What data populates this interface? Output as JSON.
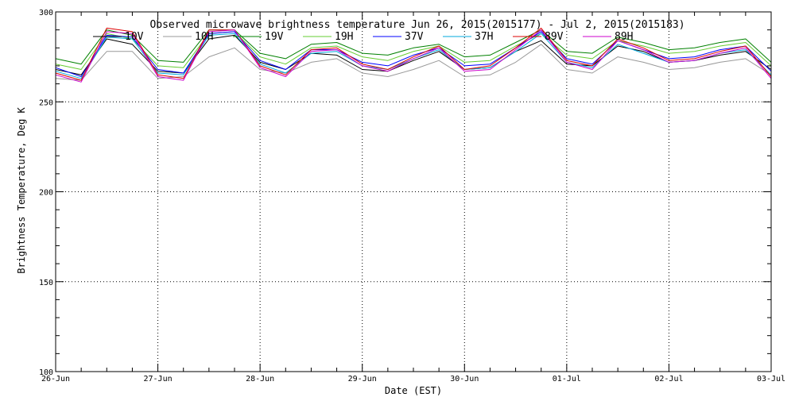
{
  "chart_data": {
    "type": "line",
    "title": "Observed microwave brightness temperature Jun 26, 2015(2015177) - Jul  2, 2015(2015183)",
    "xlabel": "Date (EST)",
    "ylabel": "Brightness Temperature, Deg K",
    "ylim": [
      100,
      300
    ],
    "xlim": [
      "26-Jun",
      "03-Jul"
    ],
    "x_tick_labels": [
      "26-Jun",
      "27-Jun",
      "28-Jun",
      "29-Jun",
      "30-Jun",
      "01-Jul",
      "02-Jul",
      "03-Jul"
    ],
    "y_ticks": [
      100,
      150,
      200,
      250,
      300
    ],
    "grid": true,
    "legend_position": "top",
    "series": [
      {
        "name": "10V",
        "color": "#000000",
        "x": [
          "26-Jun 00:00",
          "26-Jun 06:00",
          "26-Jun 12:00",
          "26-Jun 18:00",
          "27-Jun 00:00",
          "27-Jun 06:00",
          "27-Jun 12:00",
          "27-Jun 18:00",
          "28-Jun 00:00",
          "28-Jun 06:00",
          "28-Jun 12:00",
          "28-Jun 18:00",
          "29-Jun 00:00",
          "29-Jun 06:00",
          "29-Jun 12:00",
          "29-Jun 18:00",
          "30-Jun 00:00",
          "30-Jun 06:00",
          "30-Jun 12:00",
          "30-Jun 18:00",
          "01-Jul 00:00",
          "01-Jul 06:00",
          "01-Jul 12:00",
          "01-Jul 18:00",
          "02-Jul 00:00",
          "02-Jul 06:00",
          "02-Jul 12:00",
          "02-Jul 18:00",
          "03-Jul 00:00"
        ],
        "values": [
          268,
          265,
          285,
          282,
          267,
          266,
          285,
          287,
          272,
          268,
          277,
          276,
          268,
          267,
          273,
          278,
          268,
          269,
          278,
          284,
          271,
          270,
          281,
          278,
          272,
          273,
          276,
          278,
          268
        ]
      },
      {
        "name": "10H",
        "color": "#999999",
        "x": [
          "26-Jun 00:00",
          "26-Jun 06:00",
          "26-Jun 12:00",
          "26-Jun 18:00",
          "27-Jun 00:00",
          "27-Jun 06:00",
          "27-Jun 12:00",
          "27-Jun 18:00",
          "28-Jun 00:00",
          "28-Jun 06:00",
          "28-Jun 12:00",
          "28-Jun 18:00",
          "29-Jun 00:00",
          "29-Jun 06:00",
          "29-Jun 12:00",
          "29-Jun 18:00",
          "30-Jun 00:00",
          "30-Jun 06:00",
          "30-Jun 12:00",
          "30-Jun 18:00",
          "01-Jul 00:00",
          "01-Jul 06:00",
          "01-Jul 12:00",
          "01-Jul 18:00",
          "02-Jul 00:00",
          "02-Jul 06:00",
          "02-Jul 12:00",
          "02-Jul 18:00",
          "03-Jul 00:00"
        ],
        "values": [
          263,
          262,
          278,
          278,
          263,
          264,
          275,
          280,
          268,
          266,
          272,
          274,
          266,
          264,
          268,
          273,
          264,
          265,
          272,
          282,
          268,
          266,
          275,
          272,
          268,
          269,
          272,
          274,
          265
        ]
      },
      {
        "name": "19V",
        "color": "#008000",
        "x": [
          "26-Jun 00:00",
          "26-Jun 06:00",
          "26-Jun 12:00",
          "26-Jun 18:00",
          "27-Jun 00:00",
          "27-Jun 06:00",
          "27-Jun 12:00",
          "27-Jun 18:00",
          "28-Jun 00:00",
          "28-Jun 06:00",
          "28-Jun 12:00",
          "28-Jun 18:00",
          "29-Jun 00:00",
          "29-Jun 06:00",
          "29-Jun 12:00",
          "29-Jun 18:00",
          "30-Jun 00:00",
          "30-Jun 06:00",
          "30-Jun 12:00",
          "30-Jun 18:00",
          "01-Jul 00:00",
          "01-Jul 06:00",
          "01-Jul 12:00",
          "01-Jul 18:00",
          "02-Jul 00:00",
          "02-Jul 06:00",
          "02-Jul 12:00",
          "02-Jul 18:00",
          "03-Jul 00:00"
        ],
        "values": [
          274,
          271,
          290,
          287,
          273,
          272,
          290,
          290,
          277,
          274,
          282,
          283,
          277,
          276,
          280,
          282,
          275,
          276,
          283,
          290,
          278,
          277,
          286,
          283,
          279,
          280,
          283,
          285,
          272
        ]
      },
      {
        "name": "19H",
        "color": "#66cc33",
        "x": [
          "26-Jun 00:00",
          "26-Jun 06:00",
          "26-Jun 12:00",
          "26-Jun 18:00",
          "27-Jun 00:00",
          "27-Jun 06:00",
          "27-Jun 12:00",
          "27-Jun 18:00",
          "28-Jun 00:00",
          "28-Jun 06:00",
          "28-Jun 12:00",
          "28-Jun 18:00",
          "29-Jun 00:00",
          "29-Jun 06:00",
          "29-Jun 12:00",
          "29-Jun 18:00",
          "30-Jun 00:00",
          "30-Jun 06:00",
          "30-Jun 12:00",
          "30-Jun 18:00",
          "01-Jul 00:00",
          "01-Jul 06:00",
          "01-Jul 12:00",
          "01-Jul 18:00",
          "02-Jul 00:00",
          "02-Jul 06:00",
          "02-Jul 12:00",
          "02-Jul 18:00",
          "03-Jul 00:00"
        ],
        "values": [
          271,
          268,
          288,
          285,
          270,
          269,
          288,
          289,
          275,
          271,
          280,
          281,
          275,
          273,
          278,
          281,
          272,
          273,
          281,
          288,
          276,
          274,
          284,
          281,
          277,
          278,
          281,
          283,
          270
        ]
      },
      {
        "name": "37V",
        "color": "#0000ff",
        "x": [
          "26-Jun 00:00",
          "26-Jun 06:00",
          "26-Jun 12:00",
          "26-Jun 18:00",
          "27-Jun 00:00",
          "27-Jun 06:00",
          "27-Jun 12:00",
          "27-Jun 18:00",
          "28-Jun 00:00",
          "28-Jun 06:00",
          "28-Jun 12:00",
          "28-Jun 18:00",
          "29-Jun 00:00",
          "29-Jun 06:00",
          "29-Jun 12:00",
          "29-Jun 18:00",
          "30-Jun 00:00",
          "30-Jun 06:00",
          "30-Jun 12:00",
          "30-Jun 18:00",
          "01-Jul 00:00",
          "01-Jul 06:00",
          "01-Jul 12:00",
          "01-Jul 18:00",
          "02-Jul 00:00",
          "02-Jul 06:00",
          "02-Jul 12:00",
          "02-Jul 18:00",
          "03-Jul 00:00"
        ],
        "values": [
          269,
          264,
          287,
          286,
          268,
          266,
          288,
          289,
          273,
          268,
          279,
          279,
          272,
          270,
          276,
          280,
          270,
          271,
          280,
          289,
          274,
          271,
          284,
          279,
          274,
          275,
          279,
          281,
          267
        ]
      },
      {
        "name": "37H",
        "color": "#00aadd",
        "x": [
          "26-Jun 00:00",
          "26-Jun 06:00",
          "26-Jun 12:00",
          "26-Jun 18:00",
          "27-Jun 00:00",
          "27-Jun 06:00",
          "27-Jun 12:00",
          "27-Jun 18:00",
          "28-Jun 00:00",
          "28-Jun 06:00",
          "28-Jun 12:00",
          "28-Jun 18:00",
          "29-Jun 00:00",
          "29-Jun 06:00",
          "29-Jun 12:00",
          "29-Jun 18:00",
          "30-Jun 00:00",
          "30-Jun 06:00",
          "30-Jun 12:00",
          "30-Jun 18:00",
          "01-Jul 00:00",
          "01-Jul 06:00",
          "01-Jul 12:00",
          "01-Jul 18:00",
          "02-Jul 00:00",
          "02-Jul 06:00",
          "02-Jul 12:00",
          "02-Jul 18:00",
          "03-Jul 00:00"
        ],
        "values": [
          267,
          263,
          286,
          285,
          266,
          265,
          287,
          288,
          271,
          266,
          277,
          278,
          270,
          268,
          274,
          279,
          268,
          269,
          278,
          288,
          272,
          269,
          282,
          277,
          272,
          273,
          277,
          279,
          265
        ]
      },
      {
        "name": "89V",
        "color": "#dd0000",
        "x": [
          "26-Jun 00:00",
          "26-Jun 06:00",
          "26-Jun 12:00",
          "26-Jun 18:00",
          "27-Jun 00:00",
          "27-Jun 06:00",
          "27-Jun 12:00",
          "27-Jun 18:00",
          "28-Jun 00:00",
          "28-Jun 06:00",
          "28-Jun 12:00",
          "28-Jun 18:00",
          "29-Jun 00:00",
          "29-Jun 06:00",
          "29-Jun 12:00",
          "29-Jun 18:00",
          "30-Jun 00:00",
          "30-Jun 06:00",
          "30-Jun 12:00",
          "30-Jun 18:00",
          "01-Jul 00:00",
          "01-Jul 06:00",
          "01-Jul 12:00",
          "01-Jul 18:00",
          "02-Jul 00:00",
          "02-Jul 06:00",
          "02-Jul 12:00",
          "02-Jul 18:00",
          "03-Jul 00:00"
        ],
        "values": [
          266,
          262,
          291,
          289,
          265,
          263,
          290,
          290,
          270,
          265,
          279,
          280,
          271,
          268,
          275,
          281,
          268,
          270,
          280,
          291,
          273,
          270,
          285,
          280,
          273,
          274,
          278,
          281,
          264
        ]
      },
      {
        "name": "89H",
        "color": "#cc00cc",
        "x": [
          "26-Jun 00:00",
          "26-Jun 06:00",
          "26-Jun 12:00",
          "26-Jun 18:00",
          "27-Jun 00:00",
          "27-Jun 06:00",
          "27-Jun 12:00",
          "27-Jun 18:00",
          "28-Jun 00:00",
          "28-Jun 06:00",
          "28-Jun 12:00",
          "28-Jun 18:00",
          "29-Jun 00:00",
          "29-Jun 06:00",
          "29-Jun 12:00",
          "29-Jun 18:00",
          "30-Jun 00:00",
          "30-Jun 06:00",
          "30-Jun 12:00",
          "30-Jun 18:00",
          "01-Jul 00:00",
          "01-Jul 06:00",
          "01-Jul 12:00",
          "01-Jul 18:00",
          "02-Jul 00:00",
          "02-Jul 06:00",
          "02-Jul 12:00",
          "02-Jul 18:00",
          "03-Jul 00:00"
        ],
        "values": [
          265,
          261,
          289,
          288,
          264,
          262,
          289,
          290,
          269,
          264,
          278,
          279,
          270,
          267,
          274,
          280,
          267,
          268,
          279,
          290,
          272,
          268,
          284,
          279,
          272,
          273,
          277,
          280,
          263
        ]
      }
    ]
  }
}
